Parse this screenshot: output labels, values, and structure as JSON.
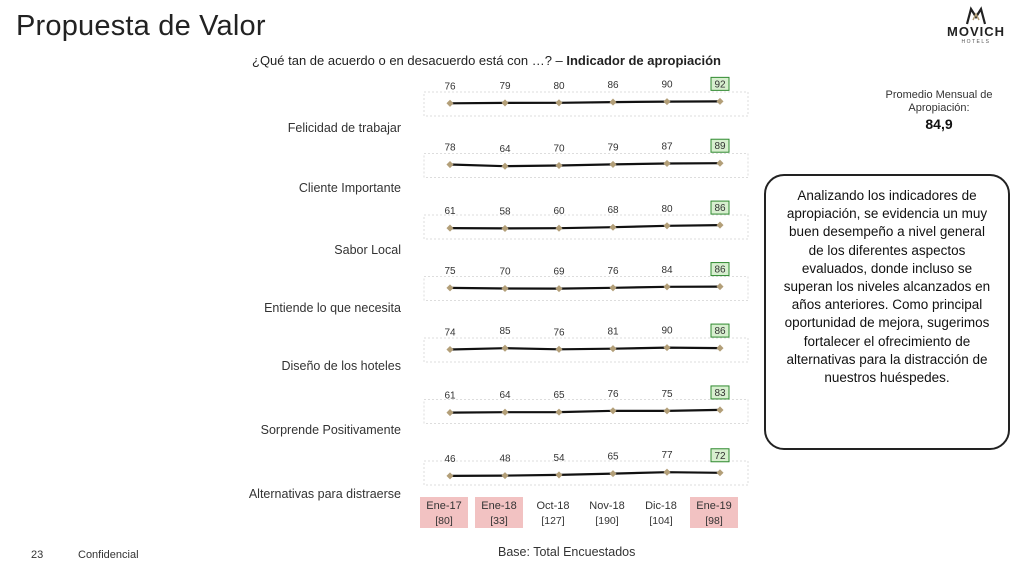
{
  "slide": {
    "title": "Propuesta de Valor",
    "question_prefix": "¿Qué tan de acuerdo o en desacuerdo está con …? – ",
    "question_bold": "Indicador de apropiación",
    "logo_text": "MOVICH",
    "logo_sub": "HOTELS",
    "promedio_label": "Promedio Mensual de Apropiación:",
    "promedio_value": "84,9",
    "callout_text": "Analizando los indicadores de apropiación, se evidencia un muy buen desempeño a nivel general de los diferentes aspectos evaluados, donde incluso se superan los niveles alcanzados en años anteriores. Como principal oportunidad de mejora, sugerimos fortalecer el ofrecimiento de alternativas para la distracción de nuestros huéspedes.",
    "page_number": "23",
    "confidential": "Confidencial",
    "base_text": "Base: Total Encuestados"
  },
  "chart_data": {
    "type": "line",
    "categories": [
      "Ene-17",
      "Ene-18",
      "Oct-18",
      "Nov-18",
      "Dic-18",
      "Ene-19"
    ],
    "sample_sizes": [
      "[80]",
      "[33]",
      "[127]",
      "[190]",
      "[104]",
      "[98]"
    ],
    "series": [
      {
        "name": "Felicidad de trabajar",
        "values": [
          76,
          79,
          80,
          86,
          90,
          92
        ]
      },
      {
        "name": "Cliente Importante",
        "values": [
          78,
          64,
          70,
          79,
          87,
          89
        ]
      },
      {
        "name": "Sabor Local",
        "values": [
          61,
          58,
          60,
          68,
          80,
          86
        ]
      },
      {
        "name": "Entiende lo que necesita",
        "values": [
          75,
          70,
          69,
          76,
          84,
          86
        ]
      },
      {
        "name": "Diseño de los hoteles",
        "values": [
          74,
          85,
          76,
          81,
          90,
          86
        ]
      },
      {
        "name": "Sorprende Positivamente",
        "values": [
          61,
          64,
          65,
          76,
          75,
          83
        ]
      },
      {
        "name": "Alternativas para distraerse",
        "values": [
          46,
          48,
          54,
          65,
          77,
          72
        ]
      }
    ],
    "highlight_last": true,
    "colors": {
      "line": "#111111",
      "marker": "#b39f78",
      "highlight_fill": "#d7efcf",
      "highlight_border": "#2f8a2f",
      "axis_fill": "#f2c2c2"
    }
  }
}
